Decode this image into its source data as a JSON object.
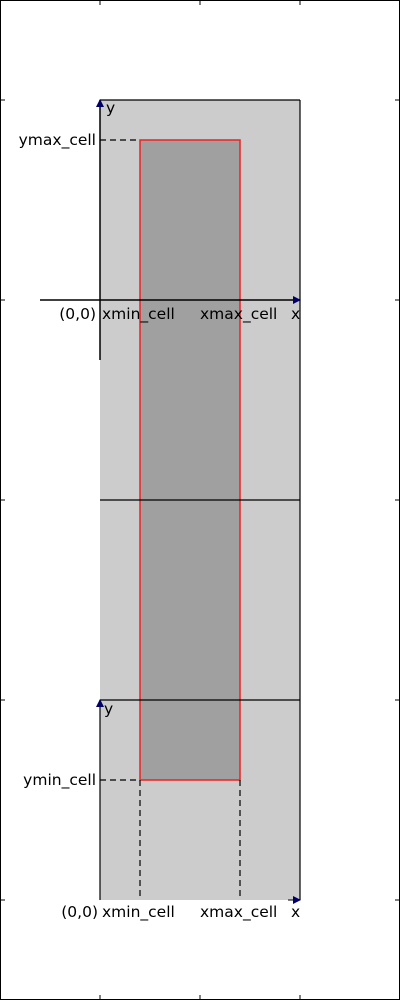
{
  "colors": {
    "background": "#ffffff",
    "panel": "#cccccc",
    "cell": "#a0a0a0",
    "cell_outline": "#ee2222",
    "axis": "#000000",
    "axis_arrow": "#000066",
    "frame": "#000000"
  },
  "upper_panel": {
    "x_axis_label": "x",
    "y_axis_label": "y",
    "origin_label": "(0,0)",
    "xmin_label": "xmin_cell",
    "xmax_label": "xmax_cell",
    "ymax_label": "ymax_cell"
  },
  "lower_panel": {
    "x_axis_label": "x",
    "y_axis_label": "y",
    "origin_label": "(0,0)",
    "xmin_label": "xmin_cell",
    "xmax_label": "xmax_cell",
    "ymin_label": "ymin_cell"
  }
}
